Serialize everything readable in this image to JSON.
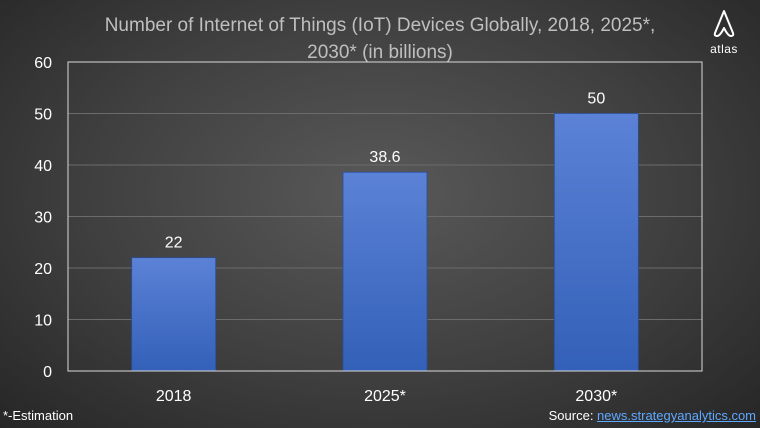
{
  "logo": {
    "icon": "atlas-logo-icon",
    "text": "atlas"
  },
  "footnote": "*-Estimation",
  "source": {
    "label": "Source: ",
    "link_text": "news.strategyanalytics.com"
  },
  "chart_data": {
    "type": "bar",
    "title_lines": [
      "Number of Internet of Things (IoT) Devices Globally, 2018, 2025*,",
      "2030* (in billions)"
    ],
    "categories": [
      "2018",
      "2025*",
      "2030*"
    ],
    "values": [
      22,
      38.6,
      50
    ],
    "value_labels": [
      "22",
      "38.6",
      "50"
    ],
    "ylim": [
      0,
      60
    ],
    "yticks": [
      0,
      10,
      20,
      30,
      40,
      50,
      60
    ],
    "grid": true,
    "legend": "none",
    "xlabel": "",
    "ylabel": "",
    "colors": {
      "bar_top": "#5b82d6",
      "bar_bottom": "#3360b8",
      "grid": "#6b6b6b"
    }
  }
}
